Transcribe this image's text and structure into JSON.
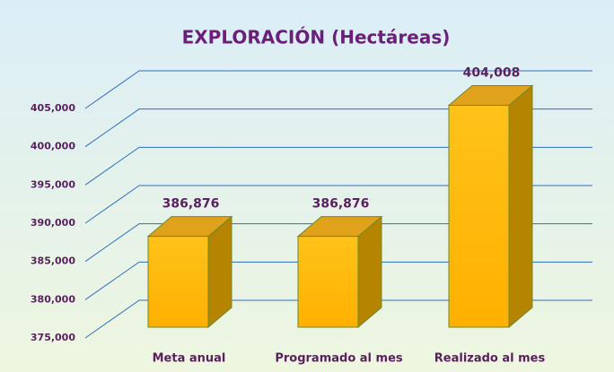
{
  "chart_data": {
    "type": "bar3d",
    "title": "EXPLORACIÓN  (Hectáreas)",
    "categories": [
      "Meta anual",
      "Programado al mes",
      "Realizado al mes"
    ],
    "values": [
      386876,
      386876,
      404008
    ],
    "value_labels": [
      "386,876",
      "386,876",
      "404,008"
    ],
    "color": "#ffc000",
    "ylim": [
      375000,
      405000
    ],
    "yticks": [
      {
        "value": 375000,
        "label": "375,000"
      },
      {
        "value": 380000,
        "label": "380,000"
      },
      {
        "value": 385000,
        "label": "385,000"
      },
      {
        "value": 390000,
        "label": "390,000"
      },
      {
        "value": 395000,
        "label": "395,000"
      },
      {
        "value": 400000,
        "label": "400,000"
      },
      {
        "value": 405000,
        "label": "405,000"
      }
    ],
    "grid": true
  }
}
